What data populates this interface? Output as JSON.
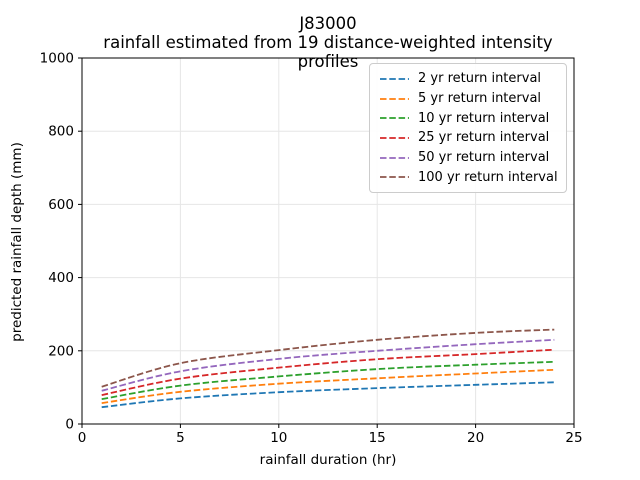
{
  "chart_data": {
    "type": "line",
    "title": "J83000",
    "subtitle": "rainfall estimated from 19 distance-weighted intensity profiles",
    "xlabel": "rainfall duration (hr)",
    "ylabel": "predicted rainfall depth (mm)",
    "xlim": [
      0,
      25
    ],
    "ylim": [
      0,
      1000
    ],
    "xticks": [
      0,
      5,
      10,
      15,
      20,
      25
    ],
    "yticks": [
      0,
      200,
      400,
      600,
      800,
      1000
    ],
    "grid": true,
    "grid_color": "#e6e6e6",
    "spine_color": "#000000",
    "line_style": "dashed",
    "line_width": 1.8,
    "legend_position": "upper right",
    "x": [
      1,
      5,
      10,
      15,
      20,
      24
    ],
    "series": [
      {
        "name": "2 yr return interval",
        "color": "#1f77b4",
        "values": [
          46,
          70,
          87,
          98,
          107,
          114
        ]
      },
      {
        "name": "5 yr return interval",
        "color": "#ff7f0e",
        "values": [
          57,
          88,
          110,
          125,
          138,
          148
        ]
      },
      {
        "name": "10 yr return interval",
        "color": "#2ca02c",
        "values": [
          68,
          105,
          130,
          150,
          162,
          170
        ]
      },
      {
        "name": "25 yr return interval",
        "color": "#d62728",
        "values": [
          79,
          124,
          154,
          177,
          191,
          203
        ]
      },
      {
        "name": "50 yr return interval",
        "color": "#9467bd",
        "values": [
          91,
          144,
          178,
          200,
          218,
          230
        ]
      },
      {
        "name": "100 yr return interval",
        "color": "#8c564b",
        "values": [
          102,
          166,
          202,
          230,
          249,
          258
        ]
      }
    ]
  }
}
